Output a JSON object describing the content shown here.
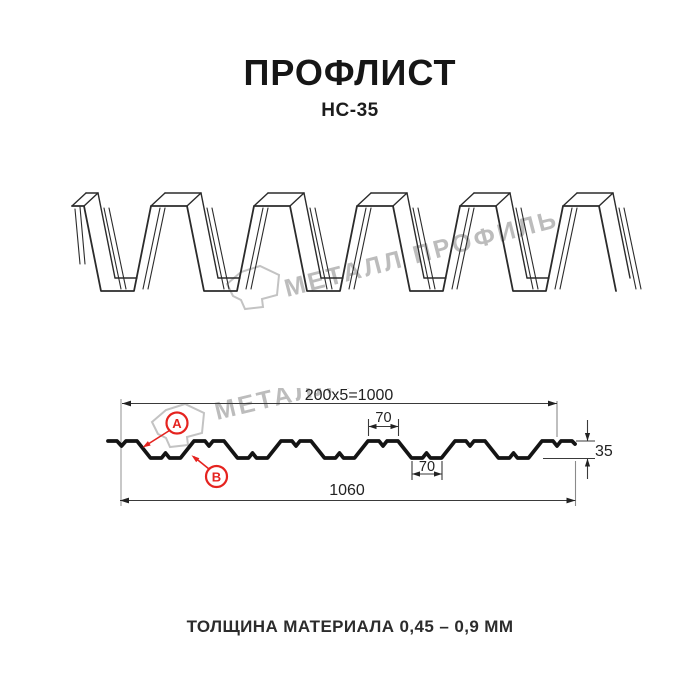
{
  "header": {
    "title": "ПРОФЛИСТ",
    "subtitle": "НС-35"
  },
  "watermark": {
    "text": "МЕТАЛЛ ПРОФИЛЬ",
    "color": "#bcbcbc"
  },
  "section": {
    "dims": {
      "coverage": "200x5=1000",
      "crest_width": "70",
      "trough_width": "70",
      "height": "35",
      "overall": "1060"
    },
    "markers": {
      "a": "А",
      "b": "В"
    }
  },
  "footer": {
    "thickness": "ТОЛЩИНА МАТЕРИАЛА 0,45 – 0,9 ММ"
  },
  "colors": {
    "accent_red": "#e5231f",
    "line": "#1c1c1c",
    "watermark": "#bcbcbc"
  }
}
